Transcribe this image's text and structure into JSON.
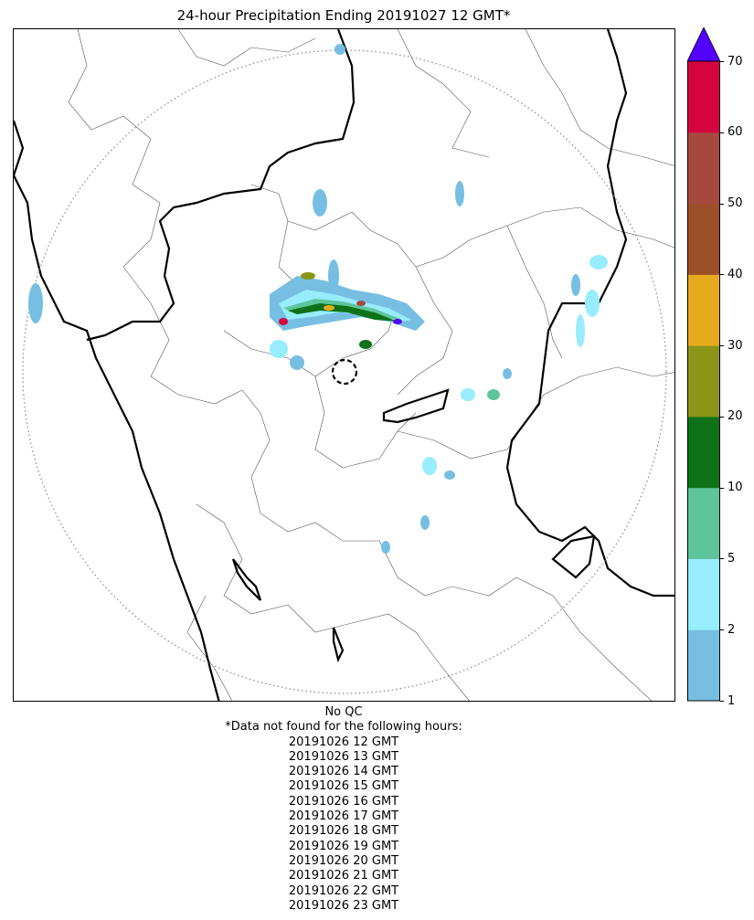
{
  "title": "24-hour Precipitation Ending 20191027 12 GMT*",
  "colorbar": {
    "ticks": [
      "1",
      "2",
      "5",
      "10",
      "20",
      "30",
      "40",
      "50",
      "60",
      "70"
    ],
    "colors": [
      "#76bfe3",
      "#97ecfd",
      "#5ec49b",
      "#0e7219",
      "#8b9618",
      "#e6ab1c",
      "#9d4f2a",
      "#a7483f",
      "#d5043f"
    ],
    "extend_color": "#5200ff"
  },
  "notes": {
    "qc": "No QC",
    "missing_header": "*Data not found for the following hours:",
    "missing_hours": [
      "20191026 12 GMT",
      "20191026 13 GMT",
      "20191026 14 GMT",
      "20191026 15 GMT",
      "20191026 16 GMT",
      "20191026 17 GMT",
      "20191026 18 GMT",
      "20191026 19 GMT",
      "20191026 20 GMT",
      "20191026 21 GMT",
      "20191026 22 GMT",
      "20191026 23 GMT"
    ]
  }
}
